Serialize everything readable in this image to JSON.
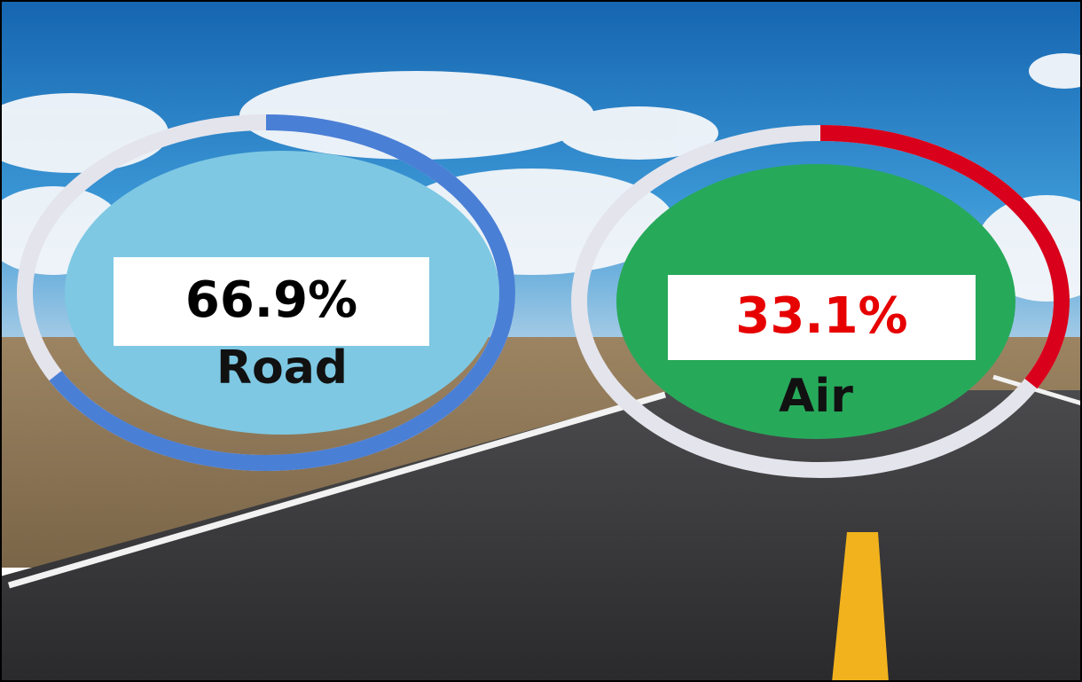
{
  "chart_data": [
    {
      "type": "donut",
      "categories": [
        "Road"
      ],
      "values": [
        66.9
      ],
      "value_labels": [
        "66.9%"
      ],
      "ylim": [
        0,
        100
      ],
      "color": "#4a7fd6",
      "track_color": "#e4e4ec",
      "fill": "#7ec8e3",
      "value_label_color": "#000000",
      "category_color": "#111111"
    },
    {
      "type": "donut",
      "categories": [
        "Air"
      ],
      "values": [
        33.1
      ],
      "value_labels": [
        "33.1%"
      ],
      "ylim": [
        0,
        100
      ],
      "color": "#d9001b",
      "track_color": "#e4e4ec",
      "fill": "#27a95a",
      "value_label_color": "#e60000",
      "category_color": "#111111"
    }
  ]
}
